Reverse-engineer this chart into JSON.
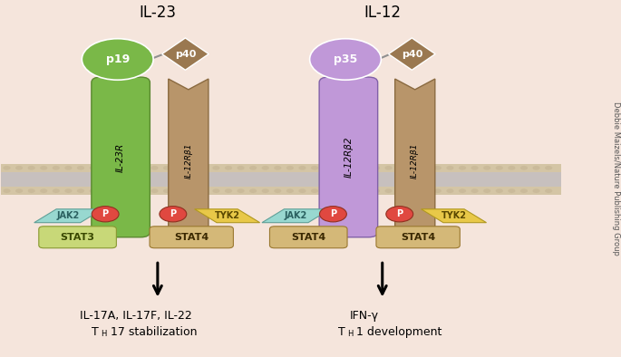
{
  "background_color": "#f5e5dc",
  "membrane_color": "#d4c5a5",
  "membrane_stripe_color": "#bfbdd0",
  "membrane_dot_color": "#c8b898",
  "title_il23": "IL-23",
  "title_il12": "IL-12",
  "watermark": "Debbie Maizels/Nature Publishing Group",
  "text1_line1": "IL-17A, IL-17F, IL-22",
  "text1_line2_pre": "T",
  "text1_sub": "H",
  "text1_line2_post": "17 stabilization",
  "text2_line1": "IFN-γ",
  "text2_line2_pre": "T",
  "text2_sub": "H",
  "text2_line2_post": "1 development",
  "il23r_color": "#7ab848",
  "il23r_edge": "#5a8830",
  "il12rb1_color": "#b8956a",
  "il12rb1_edge": "#8a6a40",
  "il12rb2_color": "#c098d8",
  "il12rb2_edge": "#8060a8",
  "p19_color": "#7ab848",
  "p35_color": "#c098d8",
  "p40_color": "#9a7850",
  "jak2_color": "#98d8d0",
  "jak2_edge": "#60a098",
  "jak2_text": "#2a6060",
  "stat3_color": "#c8d878",
  "stat3_edge": "#889830",
  "stat3_text": "#3a4800",
  "stat4_color": "#d4b878",
  "stat4_edge": "#9a7830",
  "stat4_text": "#3a2800",
  "tyk2_color": "#e8c848",
  "tyk2_edge": "#b09820",
  "tyk2_text": "#5a4800",
  "p_color": "#e04840",
  "p_edge": "#903020",
  "connector_color": "#909090"
}
